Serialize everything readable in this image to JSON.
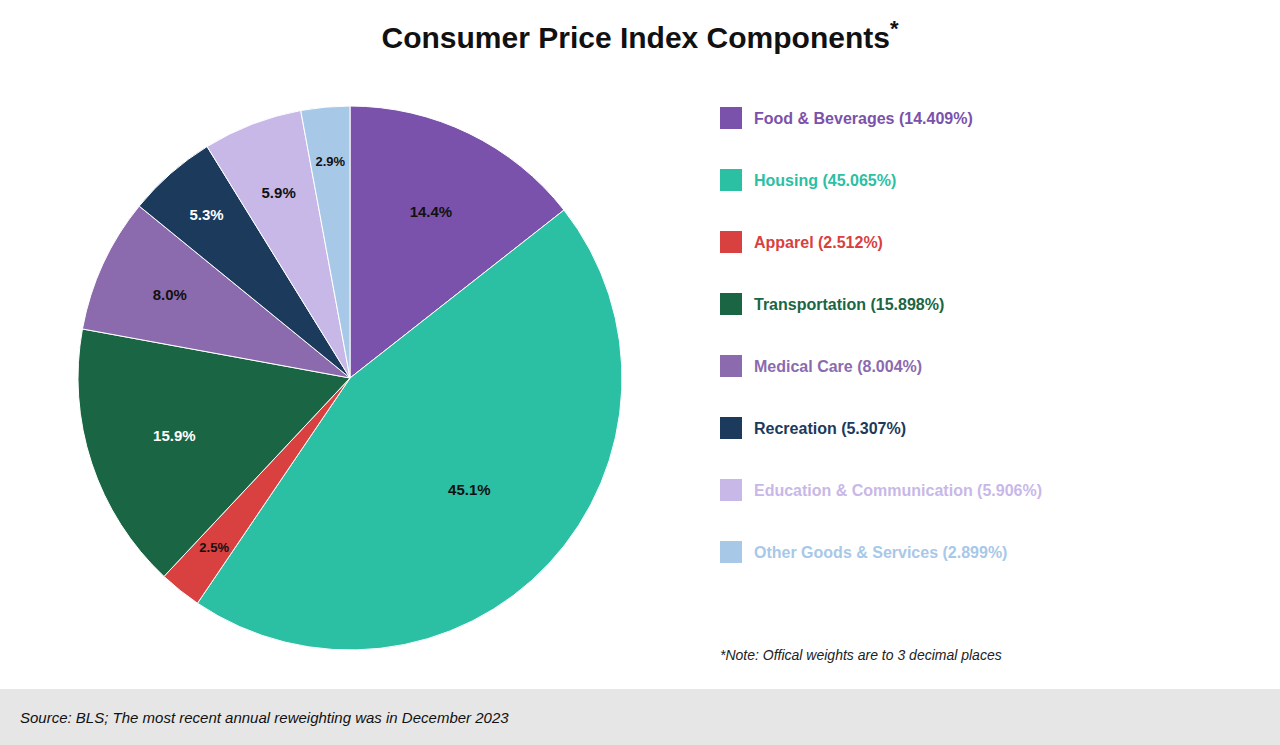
{
  "chart_data": {
    "type": "pie",
    "title": "Consumer Price Index Components",
    "title_superscript": "*",
    "categories": [
      "Food & Beverages (14.409%)",
      "Housing (45.065%)",
      "Apparel (2.512%)",
      "Transportation (15.898%)",
      "Medical Care (8.004%)",
      "Recreation (5.307%)",
      "Education & Communication (5.906%)",
      "Other Goods & Services (2.899%)"
    ],
    "values": [
      14.409,
      45.065,
      2.512,
      15.898,
      8.004,
      5.307,
      5.906,
      2.899
    ],
    "value_labels": [
      "14.4%",
      "45.1%",
      "2.5%",
      "15.9%",
      "8.0%",
      "5.3%",
      "5.9%",
      "2.9%"
    ],
    "colors": [
      "#7B52AB",
      "#2BBFA4",
      "#D94040",
      "#1A6644",
      "#8B6BAE",
      "#1B3A5C",
      "#C8B8E8",
      "#A8C8E8"
    ],
    "data_labels": true,
    "legend": "right",
    "annotations": [
      "*Note: Offical weights are to 3 decimal places",
      "Source: BLS; The most recent annual reweighting was in December 2023"
    ]
  }
}
